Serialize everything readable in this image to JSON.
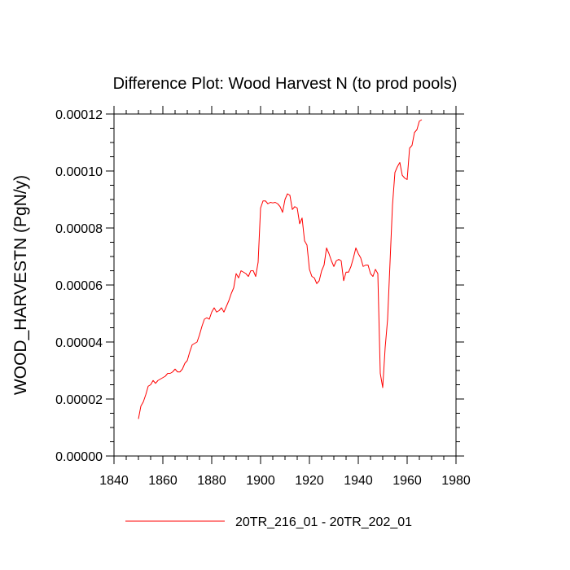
{
  "chart_data": {
    "type": "line",
    "title": "Difference Plot: Wood Harvest N (to prod pools)",
    "xlabel": "",
    "ylabel": "WOOD_HARVESTN  (PgN/y)",
    "xlim": [
      1840,
      1980
    ],
    "ylim": [
      0.0,
      0.00012
    ],
    "x_ticks": [
      1840,
      1860,
      1880,
      1900,
      1920,
      1940,
      1960,
      1980
    ],
    "x_tick_labels": [
      "1840",
      "1860",
      "1880",
      "1900",
      "1920",
      "1940",
      "1960",
      "1980"
    ],
    "y_ticks": [
      0.0,
      2e-05,
      4e-05,
      6e-05,
      8e-05,
      0.0001,
      0.00012
    ],
    "y_tick_labels": [
      "0.00000",
      "0.00002",
      "0.00004",
      "0.00006",
      "0.00008",
      "0.00010",
      "0.00012"
    ],
    "grid": false,
    "legend_position": "bottom",
    "series": [
      {
        "name": "20TR_216_01 - 20TR_202_01",
        "color": "#ff0000",
        "x": [
          1850,
          1851,
          1852,
          1853,
          1854,
          1855,
          1856,
          1857,
          1858,
          1859,
          1860,
          1861,
          1862,
          1863,
          1864,
          1865,
          1866,
          1867,
          1868,
          1869,
          1870,
          1871,
          1872,
          1873,
          1874,
          1875,
          1876,
          1877,
          1878,
          1879,
          1880,
          1881,
          1882,
          1883,
          1884,
          1885,
          1886,
          1887,
          1888,
          1889,
          1890,
          1891,
          1892,
          1893,
          1894,
          1895,
          1896,
          1897,
          1898,
          1899,
          1900,
          1901,
          1902,
          1903,
          1904,
          1905,
          1906,
          1907,
          1908,
          1909,
          1910,
          1911,
          1912,
          1913,
          1914,
          1915,
          1916,
          1917,
          1918,
          1919,
          1920,
          1921,
          1922,
          1923,
          1924,
          1925,
          1926,
          1927,
          1928,
          1929,
          1930,
          1931,
          1932,
          1933,
          1934,
          1935,
          1936,
          1937,
          1938,
          1939,
          1940,
          1941,
          1942,
          1943,
          1944,
          1945,
          1946,
          1947,
          1948,
          1949,
          1950,
          1951,
          1952,
          1953,
          1954,
          1955,
          1956,
          1957,
          1958,
          1959,
          1960,
          1961,
          1962,
          1963,
          1964,
          1965,
          1966
        ],
        "y": [
          1.3e-05,
          1.75e-05,
          1.9e-05,
          2.15e-05,
          2.45e-05,
          2.5e-05,
          2.65e-05,
          2.55e-05,
          2.65e-05,
          2.7e-05,
          2.75e-05,
          2.8e-05,
          2.9e-05,
          2.9e-05,
          2.95e-05,
          3.05e-05,
          2.95e-05,
          2.95e-05,
          3.05e-05,
          3.25e-05,
          3.35e-05,
          3.65e-05,
          3.9e-05,
          3.95e-05,
          4e-05,
          4.25e-05,
          4.55e-05,
          4.8e-05,
          4.85e-05,
          4.8e-05,
          5.05e-05,
          5.2e-05,
          5.05e-05,
          5.1e-05,
          5.2e-05,
          5.05e-05,
          5.25e-05,
          5.45e-05,
          5.7e-05,
          5.9e-05,
          6.4e-05,
          6.25e-05,
          6.5e-05,
          6.45e-05,
          6.4e-05,
          6.3e-05,
          6.5e-05,
          6.5e-05,
          6.3e-05,
          6.8e-05,
          8.7e-05,
          8.95e-05,
          8.95e-05,
          8.85e-05,
          8.9e-05,
          8.88e-05,
          8.9e-05,
          8.85e-05,
          8.75e-05,
          8.55e-05,
          9e-05,
          9.2e-05,
          9.15e-05,
          8.65e-05,
          8.75e-05,
          8.7e-05,
          8.15e-05,
          8.35e-05,
          7.55e-05,
          7.4e-05,
          6.55e-05,
          6.3e-05,
          6.25e-05,
          6.05e-05,
          6.15e-05,
          6.5e-05,
          6.7e-05,
          7.3e-05,
          7.1e-05,
          6.85e-05,
          6.65e-05,
          6.85e-05,
          6.9e-05,
          6.85e-05,
          6.15e-05,
          6.45e-05,
          6.45e-05,
          6.65e-05,
          6.95e-05,
          7.3e-05,
          7.1e-05,
          6.95e-05,
          6.65e-05,
          6.7e-05,
          6.7e-05,
          6.4e-05,
          6.3e-05,
          6.55e-05,
          6.4e-05,
          2.9e-05,
          2.4e-05,
          3.8e-05,
          4.8e-05,
          6.8e-05,
          8.8e-05,
          9.95e-05,
          0.0001015,
          0.000103,
          9.85e-05,
          9.75e-05,
          9.7e-05,
          0.000108,
          0.000109,
          0.0001135,
          0.0001145,
          0.0001175,
          0.000118
        ]
      }
    ]
  }
}
